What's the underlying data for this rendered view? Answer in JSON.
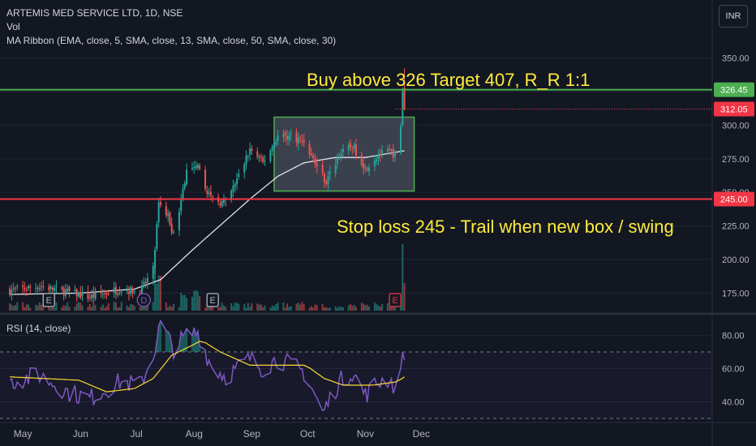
{
  "header": {
    "symbol_line": "ARTEMIS MED SERVICE LTD, 1D, NSE",
    "volume_label": "Vol",
    "ma_ribbon_label": "MA Ribbon (EMA, close, 5, SMA, close, 13, SMA, close, 50, SMA, close, 30)",
    "currency_button": "INR"
  },
  "colors": {
    "background": "#131722",
    "up": "#26a69a",
    "down": "#ef5350",
    "ma_line": "#e0e3eb",
    "box_border": "#4caf50",
    "box_fill": "#4a4f5c",
    "buy_line": "#4caf50",
    "stop_line": "#f23645",
    "annotation": "#ffeb3b",
    "rsi_line": "#7e57c2",
    "rsi_ma": "#fdd835"
  },
  "annotations": {
    "buy_text": "Buy above 326 Target 407, R_R 1:1",
    "stop_text": "Stop loss 245 - Trail when new box / swing"
  },
  "events": [
    {
      "label": "E",
      "date": "2023-05-15",
      "color": "#b2b5be"
    },
    {
      "label": "D",
      "date": "2023-07-05",
      "color": "#7e57c2"
    },
    {
      "label": "E",
      "date": "2023-08-11",
      "color": "#b2b5be"
    },
    {
      "label": "E",
      "date": "2023-11-17",
      "color": "#f23645"
    }
  ],
  "chart_data": [
    {
      "type": "candlestick",
      "title": "ARTEMIS MED SERVICE LTD, 1D, NSE",
      "x_axis": {
        "ticks": [
          "May",
          "Jun",
          "Jul",
          "Aug",
          "Sep",
          "Oct",
          "Nov",
          "Dec"
        ]
      },
      "y_axis": {
        "ticks": [
          175,
          200,
          225,
          250,
          275,
          300,
          325,
          350
        ],
        "range": [
          162,
          357
        ],
        "format": "2dp"
      },
      "price_labels": [
        {
          "value": 326.45,
          "text": "326.45",
          "color": "#4caf50"
        },
        {
          "value": 312.05,
          "text": "312.05",
          "color": "#f23645"
        },
        {
          "value": 245.0,
          "text": "245.00",
          "color": "#f23645"
        }
      ],
      "horizontal_lines": [
        {
          "name": "buy-level",
          "value": 326.45
        },
        {
          "name": "stop-level",
          "value": 245.0
        },
        {
          "name": "last-price",
          "value": 312.05
        }
      ],
      "box": {
        "start_date": "2023-09-13",
        "end_date": "2023-11-22",
        "high": 306,
        "low": 251
      },
      "anchors": [
        {
          "d": "2023-04-24",
          "c": 177
        },
        {
          "d": "2023-05-10",
          "c": 180
        },
        {
          "d": "2023-05-25",
          "c": 176
        },
        {
          "d": "2023-06-06",
          "c": 172
        },
        {
          "d": "2023-06-22",
          "c": 178
        },
        {
          "d": "2023-07-03",
          "c": 176
        },
        {
          "d": "2023-07-10",
          "c": 192
        },
        {
          "d": "2023-07-13",
          "c": 240
        },
        {
          "d": "2023-07-18",
          "c": 232
        },
        {
          "d": "2023-07-21",
          "c": 218
        },
        {
          "d": "2023-07-25",
          "c": 245
        },
        {
          "d": "2023-07-28",
          "c": 265
        },
        {
          "d": "2023-08-03",
          "c": 268
        },
        {
          "d": "2023-08-10",
          "c": 245
        },
        {
          "d": "2023-08-18",
          "c": 242
        },
        {
          "d": "2023-08-25",
          "c": 262
        },
        {
          "d": "2023-08-31",
          "c": 282
        },
        {
          "d": "2023-09-07",
          "c": 272
        },
        {
          "d": "2023-09-15",
          "c": 292
        },
        {
          "d": "2023-09-22",
          "c": 292
        },
        {
          "d": "2023-09-29",
          "c": 288
        },
        {
          "d": "2023-10-05",
          "c": 272
        },
        {
          "d": "2023-10-11",
          "c": 258
        },
        {
          "d": "2023-10-18",
          "c": 278
        },
        {
          "d": "2023-10-25",
          "c": 285
        },
        {
          "d": "2023-11-01",
          "c": 268
        },
        {
          "d": "2023-11-08",
          "c": 278
        },
        {
          "d": "2023-11-14",
          "c": 280
        },
        {
          "d": "2023-11-17",
          "c": 278
        },
        {
          "d": "2023-11-20",
          "c": 298
        },
        {
          "d": "2023-11-21",
          "c": 326
        },
        {
          "d": "2023-11-22",
          "c": 312
        }
      ],
      "ma30_anchors": [
        {
          "d": "2023-04-24",
          "v": 174
        },
        {
          "d": "2023-05-31",
          "v": 175
        },
        {
          "d": "2023-06-30",
          "v": 178
        },
        {
          "d": "2023-07-14",
          "v": 185
        },
        {
          "d": "2023-07-31",
          "v": 207
        },
        {
          "d": "2023-08-31",
          "v": 245
        },
        {
          "d": "2023-09-15",
          "v": 262
        },
        {
          "d": "2023-09-29",
          "v": 272
        },
        {
          "d": "2023-10-16",
          "v": 276
        },
        {
          "d": "2023-11-01",
          "v": 276
        },
        {
          "d": "2023-11-22",
          "v": 281
        }
      ]
    },
    {
      "type": "line",
      "title": "RSI (14, close)",
      "y_axis": {
        "ticks": [
          40,
          60,
          80
        ],
        "range": [
          29,
          90
        ],
        "band": [
          30,
          70
        ]
      },
      "anchors": [
        {
          "d": "2023-04-24",
          "v": 52
        },
        {
          "d": "2023-05-10",
          "v": 56
        },
        {
          "d": "2023-05-25",
          "v": 46
        },
        {
          "d": "2023-06-06",
          "v": 42
        },
        {
          "d": "2023-06-22",
          "v": 52
        },
        {
          "d": "2023-07-03",
          "v": 50
        },
        {
          "d": "2023-07-10",
          "v": 68
        },
        {
          "d": "2023-07-14",
          "v": 87
        },
        {
          "d": "2023-07-21",
          "v": 72
        },
        {
          "d": "2023-07-28",
          "v": 80
        },
        {
          "d": "2023-08-03",
          "v": 82
        },
        {
          "d": "2023-08-10",
          "v": 62
        },
        {
          "d": "2023-08-18",
          "v": 55
        },
        {
          "d": "2023-08-31",
          "v": 66
        },
        {
          "d": "2023-09-07",
          "v": 60
        },
        {
          "d": "2023-09-15",
          "v": 66
        },
        {
          "d": "2023-09-22",
          "v": 62
        },
        {
          "d": "2023-09-29",
          "v": 58
        },
        {
          "d": "2023-10-05",
          "v": 44
        },
        {
          "d": "2023-10-09",
          "v": 33
        },
        {
          "d": "2023-10-18",
          "v": 52
        },
        {
          "d": "2023-10-25",
          "v": 58
        },
        {
          "d": "2023-11-01",
          "v": 44
        },
        {
          "d": "2023-11-08",
          "v": 52
        },
        {
          "d": "2023-11-14",
          "v": 54
        },
        {
          "d": "2023-11-17",
          "v": 48
        },
        {
          "d": "2023-11-20",
          "v": 60
        },
        {
          "d": "2023-11-21",
          "v": 70
        },
        {
          "d": "2023-11-22",
          "v": 65
        }
      ],
      "ma_anchors": [
        {
          "d": "2023-04-24",
          "v": 55
        },
        {
          "d": "2023-05-31",
          "v": 53
        },
        {
          "d": "2023-06-15",
          "v": 46
        },
        {
          "d": "2023-06-30",
          "v": 48
        },
        {
          "d": "2023-07-10",
          "v": 54
        },
        {
          "d": "2023-07-20",
          "v": 68
        },
        {
          "d": "2023-07-31",
          "v": 74
        },
        {
          "d": "2023-08-05",
          "v": 77
        },
        {
          "d": "2023-08-15",
          "v": 70
        },
        {
          "d": "2023-08-31",
          "v": 62
        },
        {
          "d": "2023-09-30",
          "v": 62
        },
        {
          "d": "2023-10-10",
          "v": 54
        },
        {
          "d": "2023-10-20",
          "v": 50
        },
        {
          "d": "2023-11-05",
          "v": 50
        },
        {
          "d": "2023-11-18",
          "v": 52
        },
        {
          "d": "2023-11-22",
          "v": 55
        }
      ]
    }
  ]
}
